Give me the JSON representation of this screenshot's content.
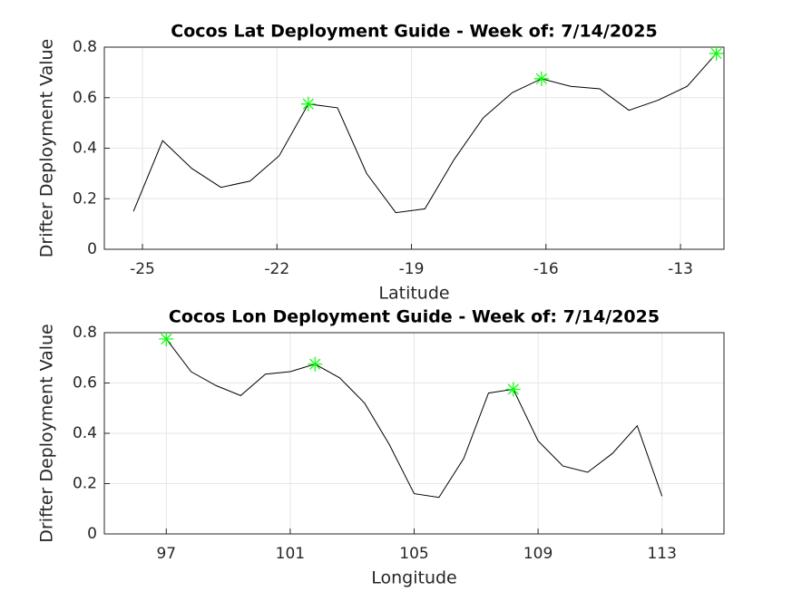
{
  "chart_data": [
    {
      "type": "line",
      "title": "Cocos Lat Deployment Guide - Week of: 7/14/2025",
      "xlabel": "Latitude",
      "ylabel": "Drifter Deployment Value",
      "x": [
        -25.2,
        -24.55,
        -23.9,
        -23.25,
        -22.6,
        -21.95,
        -21.3,
        -20.65,
        -20.0,
        -19.35,
        -18.7,
        -18.05,
        -17.4,
        -16.75,
        -16.1,
        -15.45,
        -14.8,
        -14.15,
        -13.5,
        -12.85,
        -12.2
      ],
      "series": [
        {
          "color": "#000000",
          "values": [
            0.15,
            0.43,
            0.32,
            0.245,
            0.27,
            0.37,
            0.575,
            0.56,
            0.3,
            0.145,
            0.16,
            0.355,
            0.52,
            0.62,
            0.675,
            0.645,
            0.635,
            0.55,
            0.59,
            0.645,
            0.775
          ]
        },
        {
          "color": "#00ff00",
          "marker": "star",
          "values": [
            null,
            null,
            null,
            null,
            null,
            null,
            0.575,
            null,
            null,
            null,
            null,
            null,
            null,
            null,
            0.675,
            null,
            null,
            null,
            null,
            null,
            0.775
          ]
        }
      ],
      "xlim": [
        -25.85,
        -12.03
      ],
      "xticks": [
        -25,
        -22,
        -19,
        -16,
        -13
      ],
      "ylim": [
        0,
        0.8
      ],
      "yticks": [
        0,
        0.2,
        0.4,
        0.6,
        0.8
      ],
      "grid": true
    },
    {
      "type": "line",
      "title": "Cocos Lon Deployment Guide - Week of: 7/14/2025",
      "xlabel": "Longitude",
      "ylabel": "Drifter Deployment Value",
      "x": [
        97,
        97.8,
        98.6,
        99.4,
        100.2,
        101,
        101.8,
        102.6,
        103.4,
        104.2,
        105,
        105.8,
        106.6,
        107.4,
        108.2,
        109,
        109.8,
        110.6,
        111.4,
        112.2,
        113
      ],
      "series": [
        {
          "color": "#000000",
          "values": [
            0.775,
            0.645,
            0.59,
            0.55,
            0.635,
            0.645,
            0.675,
            0.62,
            0.52,
            0.355,
            0.16,
            0.145,
            0.3,
            0.56,
            0.575,
            0.37,
            0.27,
            0.245,
            0.32,
            0.43,
            0.15
          ]
        },
        {
          "color": "#00ff00",
          "marker": "star",
          "values": [
            0.775,
            null,
            null,
            null,
            null,
            null,
            0.675,
            null,
            null,
            null,
            null,
            null,
            null,
            null,
            0.575,
            null,
            null,
            null,
            null,
            null,
            null
          ]
        }
      ],
      "xlim": [
        95,
        115
      ],
      "xticks": [
        97,
        101,
        105,
        109,
        113
      ],
      "ylim": [
        0,
        0.8
      ],
      "yticks": [
        0,
        0.2,
        0.4,
        0.6,
        0.8
      ],
      "grid": true
    }
  ]
}
